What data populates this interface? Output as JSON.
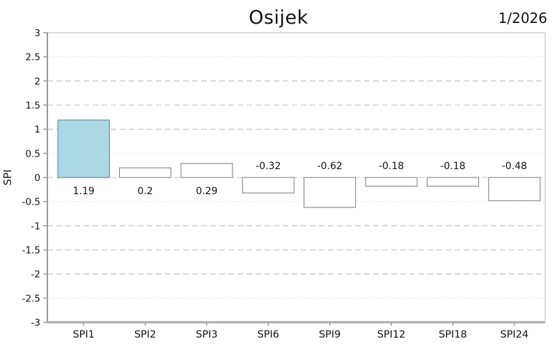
{
  "chart_data": {
    "type": "bar",
    "title": "Osijek",
    "period_label": "1/2026",
    "ylabel": "SPI",
    "xlabel": "",
    "categories": [
      "SPI1",
      "SPI2",
      "SPI3",
      "SPI6",
      "SPI9",
      "SPI12",
      "SPI18",
      "SPI24"
    ],
    "values": [
      1.19,
      0.2,
      0.29,
      -0.32,
      -0.62,
      -0.18,
      -0.18,
      -0.48
    ],
    "value_labels": [
      "1.19",
      "0.2",
      "0.29",
      "-0.32",
      "-0.62",
      "-0.18",
      "-0.18",
      "-0.48"
    ],
    "ylim": [
      -3,
      3
    ],
    "ytick_step": 0.5,
    "ytick_labels": [
      "3",
      "2.5",
      "2",
      "1.5",
      "1",
      "0.5",
      "0",
      "-0.5",
      "-1",
      "-1.5",
      "-2",
      "-2.5",
      "-3"
    ],
    "grid": "on",
    "legend": "none",
    "highlight_index": 0,
    "gridline_styles": {
      "dashed_at": [
        2,
        1.5,
        1,
        0,
        -1,
        -1.5,
        -2
      ],
      "dotted_at": [
        2.5,
        0.5,
        -0.5,
        -2.5
      ]
    },
    "colors": {
      "highlight_fill": "#ADD8E6",
      "highlight_stroke": "#7b9cab",
      "bar_fill": "#ffffff",
      "bar_stroke": "#787878",
      "grid_dashed": "#c9c9c9",
      "grid_dotted": "#dedede",
      "axis": "#999999",
      "bottom_axis": "#aaaaaa",
      "border": "#cfcfcf",
      "text": "#111111"
    }
  }
}
